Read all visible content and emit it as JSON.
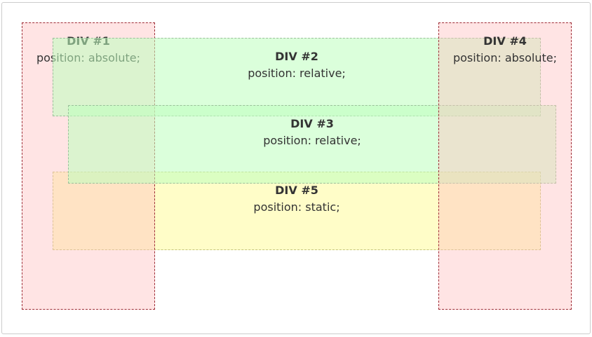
{
  "boxes": {
    "div1": {
      "title": "DIV #1",
      "position": "position: absolute;"
    },
    "div2": {
      "title": "DIV #2",
      "position": "position: relative;"
    },
    "div3": {
      "title": "DIV #3",
      "position": "position: relative;"
    },
    "div4": {
      "title": "DIV #4",
      "position": "position: absolute;"
    },
    "div5": {
      "title": "DIV #5",
      "position": "position: static;"
    }
  },
  "colors": {
    "absolute_fill": "#ffbebe",
    "absolute_border": "#9e2b35",
    "relative_fill": "#beffbe",
    "relative_border": "#9bbf9b",
    "static_fill": "#fffdc8",
    "static_border": "#c4c47a"
  }
}
